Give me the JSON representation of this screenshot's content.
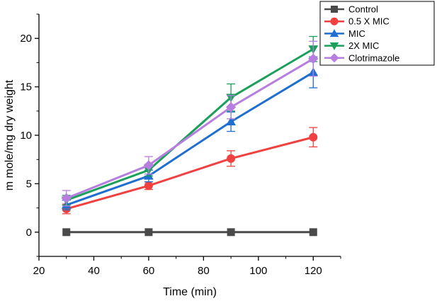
{
  "chart_data": {
    "type": "line",
    "title": "",
    "xlabel": "Time (min)",
    "ylabel": "m mole/mg dry weight",
    "xlim": [
      20,
      130
    ],
    "ylim": [
      -2.5,
      22.5
    ],
    "xticks": [
      20,
      40,
      60,
      80,
      100,
      120
    ],
    "yticks": [
      0,
      5,
      10,
      15,
      20
    ],
    "x": [
      30,
      60,
      90,
      120
    ],
    "legend_position": "top-right",
    "grid": false,
    "series": [
      {
        "name": "Control",
        "color": "#4a4a4a",
        "marker": "square",
        "values": [
          0,
          0,
          0,
          0
        ],
        "errors": [
          0,
          0,
          0,
          0
        ]
      },
      {
        "name": "0.5 X MIC",
        "color": "#f04040",
        "marker": "circle",
        "values": [
          2.4,
          4.8,
          7.6,
          9.8
        ],
        "errors": [
          0.5,
          0.4,
          0.8,
          1.0
        ]
      },
      {
        "name": "MIC",
        "color": "#1f6fd0",
        "marker": "triangle-up",
        "values": [
          2.8,
          5.8,
          11.4,
          16.5
        ],
        "errors": [
          0.5,
          0.6,
          1.0,
          1.6
        ]
      },
      {
        "name": "2X MIC",
        "color": "#19a05a",
        "marker": "triangle-down",
        "values": [
          3.3,
          6.4,
          13.9,
          18.9
        ],
        "errors": [
          0.5,
          0.6,
          1.4,
          1.3
        ]
      },
      {
        "name": "Clotrimazole",
        "color": "#b77ee0",
        "marker": "diamond",
        "values": [
          3.5,
          6.9,
          12.9,
          17.9
        ],
        "errors": [
          0.8,
          0.9,
          1.2,
          1.8
        ]
      }
    ]
  }
}
